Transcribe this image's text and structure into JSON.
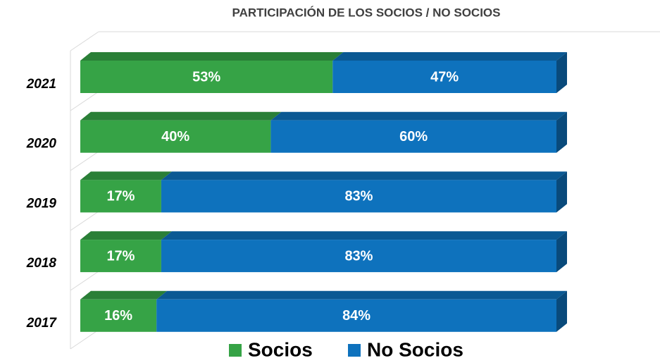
{
  "chart_data": {
    "type": "stacked_bar_horizontal",
    "title": "PARTICIPACIÓN DE LOS SOCIOS / NO SOCIOS",
    "categories": [
      "2021",
      "2020",
      "2019",
      "2018",
      "2017"
    ],
    "series": [
      {
        "name": "Socios",
        "color": "#36a346",
        "values": [
          53,
          40,
          17,
          17,
          16
        ],
        "value_labels": [
          "53%",
          "40%",
          "17%",
          "17%",
          "16%"
        ]
      },
      {
        "name": "No Socios",
        "color": "#0e72bd",
        "values": [
          47,
          60,
          83,
          83,
          84
        ],
        "value_labels": [
          "47%",
          "60%",
          "83%",
          "83%",
          "84%"
        ]
      }
    ],
    "legend": "bottom"
  }
}
